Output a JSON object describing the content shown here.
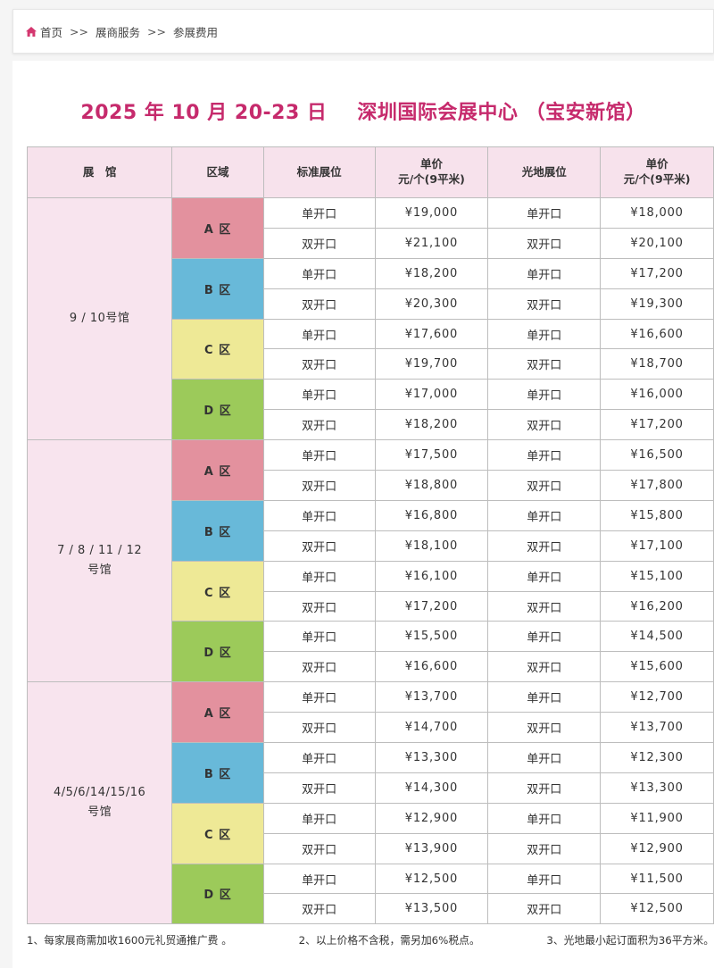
{
  "breadcrumb": {
    "items": [
      "首页",
      "展商服务",
      "参展费用"
    ],
    "separator": ">>"
  },
  "title": {
    "date": "2025 年 10 月 20-23 日",
    "venue": "深圳国际会展中心 （宝安新馆）"
  },
  "table": {
    "headers": {
      "hall": "展　馆",
      "zone": "区域",
      "standard_booth": "标准展位",
      "standard_price": "单价",
      "standard_price_unit": "元/个(9平米)",
      "raw_space": "光地展位",
      "raw_price": "单价",
      "raw_price_unit": "元/个(9平米)"
    },
    "halls": [
      {
        "name": "9 / 10号馆",
        "zones": [
          {
            "name": "A 区",
            "rows": [
              [
                "单开口",
                "¥19,000",
                "单开口",
                "¥18,000"
              ],
              [
                "双开口",
                "¥21,100",
                "双开口",
                "¥20,100"
              ]
            ]
          },
          {
            "name": "B 区",
            "rows": [
              [
                "单开口",
                "¥18,200",
                "单开口",
                "¥17,200"
              ],
              [
                "双开口",
                "¥20,300",
                "双开口",
                "¥19,300"
              ]
            ]
          },
          {
            "name": "C 区",
            "rows": [
              [
                "单开口",
                "¥17,600",
                "单开口",
                "¥16,600"
              ],
              [
                "双开口",
                "¥19,700",
                "双开口",
                "¥18,700"
              ]
            ]
          },
          {
            "name": "D 区",
            "rows": [
              [
                "单开口",
                "¥17,000",
                "单开口",
                "¥16,000"
              ],
              [
                "双开口",
                "¥18,200",
                "双开口",
                "¥17,200"
              ]
            ]
          }
        ]
      },
      {
        "name": "7 / 8 / 11 / 12\n号馆",
        "zones": [
          {
            "name": "A 区",
            "rows": [
              [
                "单开口",
                "¥17,500",
                "单开口",
                "¥16,500"
              ],
              [
                "双开口",
                "¥18,800",
                "双开口",
                "¥17,800"
              ]
            ]
          },
          {
            "name": "B 区",
            "rows": [
              [
                "单开口",
                "¥16,800",
                "单开口",
                "¥15,800"
              ],
              [
                "双开口",
                "¥18,100",
                "双开口",
                "¥17,100"
              ]
            ]
          },
          {
            "name": "C 区",
            "rows": [
              [
                "单开口",
                "¥16,100",
                "单开口",
                "¥15,100"
              ],
              [
                "双开口",
                "¥17,200",
                "双开口",
                "¥16,200"
              ]
            ]
          },
          {
            "name": "D 区",
            "rows": [
              [
                "单开口",
                "¥15,500",
                "单开口",
                "¥14,500"
              ],
              [
                "双开口",
                "¥16,600",
                "双开口",
                "¥15,600"
              ]
            ]
          }
        ]
      },
      {
        "name": "4/5/6/14/15/16\n号馆",
        "zones": [
          {
            "name": "A 区",
            "rows": [
              [
                "单开口",
                "¥13,700",
                "单开口",
                "¥12,700"
              ],
              [
                "双开口",
                "¥14,700",
                "双开口",
                "¥13,700"
              ]
            ]
          },
          {
            "name": "B 区",
            "rows": [
              [
                "单开口",
                "¥13,300",
                "单开口",
                "¥12,300"
              ],
              [
                "双开口",
                "¥14,300",
                "双开口",
                "¥13,300"
              ]
            ]
          },
          {
            "name": "C 区",
            "rows": [
              [
                "单开口",
                "¥12,900",
                "单开口",
                "¥11,900"
              ],
              [
                "双开口",
                "¥13,900",
                "双开口",
                "¥12,900"
              ]
            ]
          },
          {
            "name": "D 区",
            "rows": [
              [
                "单开口",
                "¥12,500",
                "单开口",
                "¥11,500"
              ],
              [
                "双开口",
                "¥13,500",
                "双开口",
                "¥12,500"
              ]
            ]
          }
        ]
      }
    ]
  },
  "notes": [
    "1、每家展商需加收1600元礼贸通推广费 。",
    "2、以上价格不含税，需另加6%税点。",
    "3、光地最小起订面积为36平方米。"
  ],
  "colors": {
    "accent": "#c62a6c",
    "header_bg": "#f7e2ec",
    "zone_a": "#e3919e",
    "zone_b": "#68b9d9",
    "zone_c": "#eee996",
    "zone_d": "#9cca5a"
  },
  "icons": {
    "home": "home-icon"
  }
}
